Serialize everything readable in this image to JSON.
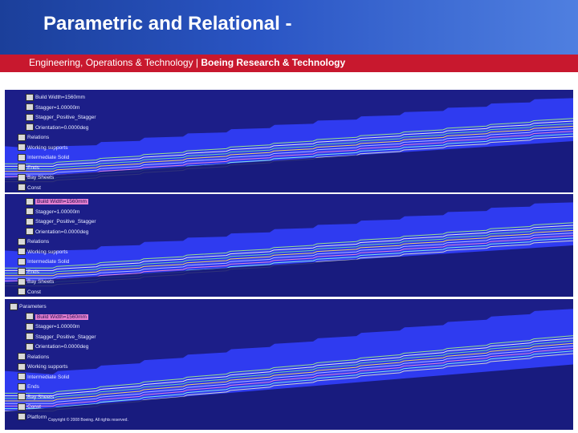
{
  "header": {
    "title": "Parametric and Relational -",
    "subtitle_left": "Engineering, Operations & Technology | ",
    "subtitle_bold": "Boeing Research & Technology"
  },
  "panels": [
    {
      "tree": [
        {
          "label": "Build Width=1560mm",
          "indent": 2,
          "highlight": false
        },
        {
          "label": "Stagger=1.00000m",
          "indent": 2,
          "highlight": false
        },
        {
          "label": "Stagger_Positive_Stagger",
          "indent": 2,
          "highlight": false
        },
        {
          "label": "Orientation=0.0000deg",
          "indent": 2,
          "highlight": false
        },
        {
          "label": "Relations",
          "indent": 1,
          "highlight": false
        },
        {
          "label": "Working supports",
          "indent": 1,
          "highlight": false
        },
        {
          "label": "Intermediate Solid",
          "indent": 1,
          "highlight": false
        },
        {
          "label": "Ends",
          "indent": 1,
          "highlight": false
        },
        {
          "label": "Bay Sheets",
          "indent": 1,
          "highlight": false
        },
        {
          "label": "Const",
          "indent": 1,
          "highlight": false
        }
      ]
    },
    {
      "tree": [
        {
          "label": "Build Width=1560mm",
          "indent": 2,
          "highlight": true
        },
        {
          "label": "Stagger=1.00000m",
          "indent": 2,
          "highlight": false
        },
        {
          "label": "Stagger_Positive_Stagger",
          "indent": 2,
          "highlight": false
        },
        {
          "label": "Orientation=0.0000deg",
          "indent": 2,
          "highlight": false
        },
        {
          "label": "Relations",
          "indent": 1,
          "highlight": false
        },
        {
          "label": "Working supports",
          "indent": 1,
          "highlight": false
        },
        {
          "label": "Intermediate Solid",
          "indent": 1,
          "highlight": false
        },
        {
          "label": "Ends",
          "indent": 1,
          "highlight": false
        },
        {
          "label": "Bay Sheets",
          "indent": 1,
          "highlight": false
        },
        {
          "label": "Const",
          "indent": 1,
          "highlight": false
        }
      ]
    },
    {
      "tree": [
        {
          "label": "Parameters",
          "indent": 0,
          "highlight": false
        },
        {
          "label": "Build Width=1560mm",
          "indent": 2,
          "highlight": true
        },
        {
          "label": "Stagger=1.00000m",
          "indent": 2,
          "highlight": false
        },
        {
          "label": "Stagger_Positive_Stagger",
          "indent": 2,
          "highlight": false
        },
        {
          "label": "Orientation=0.0000deg",
          "indent": 2,
          "highlight": false
        },
        {
          "label": "Relations",
          "indent": 1,
          "highlight": false
        },
        {
          "label": "Working supports",
          "indent": 1,
          "highlight": false
        },
        {
          "label": "Intermediate Solid",
          "indent": 1,
          "highlight": false
        },
        {
          "label": "Ends",
          "indent": 1,
          "highlight": false
        },
        {
          "label": "Bay Sheets",
          "indent": 1,
          "highlight": false
        },
        {
          "label": "Const",
          "indent": 1,
          "highlight": false
        },
        {
          "label": "Platform",
          "indent": 1,
          "highlight": false
        }
      ]
    }
  ],
  "footer": {
    "copyright": "Copyright © 2008 Boeing. All rights reserved."
  },
  "colors": {
    "header_blue": "#2a55c4",
    "subbar_red": "#c8182e",
    "viewport_bg": "#1c1e88",
    "surface_blue": "#2f3bf0",
    "highlight_pink": "#e57fd0"
  }
}
